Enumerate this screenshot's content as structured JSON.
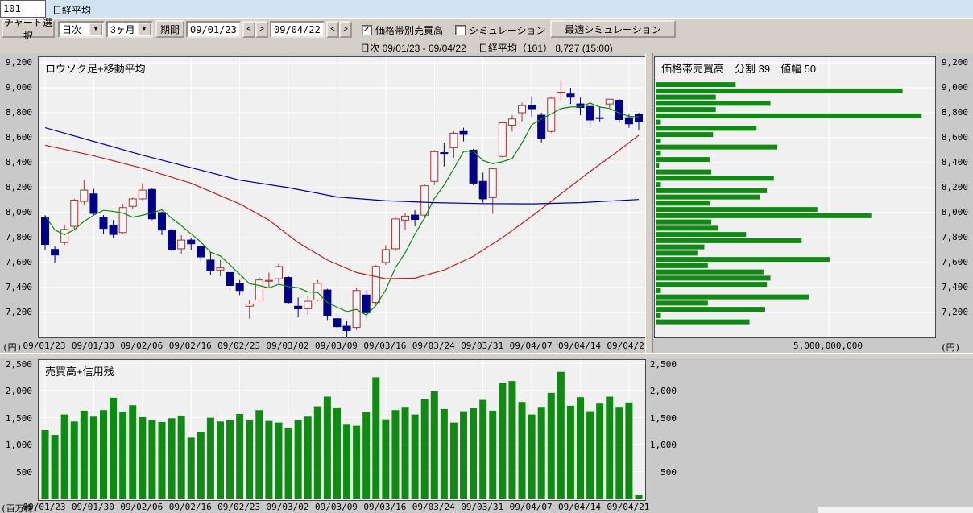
{
  "window": {
    "code_value": "101",
    "title": "日経平均"
  },
  "toolbar": {
    "chart_select": "チャート選択",
    "freq": "日次",
    "range": "3ヶ月",
    "period": "期間",
    "date_from": "09/01/23",
    "date_to": "09/04/22",
    "prev": "<",
    "next": ">",
    "dropdown_arrow": "▼",
    "vbp_check": {
      "label": "価格帯別売買高",
      "checked": true,
      "glyph": "✓"
    },
    "sim_check": {
      "label": "シミュレーション",
      "checked": false,
      "glyph": ""
    },
    "optimal": "最適シミュレーション"
  },
  "status": {
    "text": "日次 09/01/23 - 09/04/22　 日経平均（101） 8,727 (15:00)"
  },
  "colors": {
    "titlebar_bg": "#d2e4f4",
    "toolbar_bg": "#d4d0c8",
    "plot_bg": "#f0f0f0",
    "grid": "#ffffff",
    "candle_up_fill": "#f6f6f6",
    "candle_up_stroke": "#aa3333",
    "candle_down": "#000085",
    "ma_short": "#0d8a0d",
    "ma_mid": "#bb2222",
    "ma_long": "#000099",
    "bar_green": "#108a14"
  },
  "chart_data": [
    {
      "type": "candlestick",
      "title": "ロウソク足+移動平均",
      "unit_label": "(円)",
      "ylim": [
        7000,
        9245
      ],
      "y_ticks": [
        7200,
        7400,
        7600,
        7800,
        8000,
        8200,
        8400,
        8600,
        8800,
        9000,
        9200
      ],
      "x_tick_labels": [
        "09/01/23",
        "09/01/30",
        "09/02/06",
        "09/02/16",
        "09/02/23",
        "09/03/02",
        "09/03/09",
        "09/03/16",
        "09/03/24",
        "09/03/31",
        "09/04/07",
        "09/04/14",
        "09/04/21"
      ],
      "x_tick_indices": [
        0,
        5,
        10,
        15,
        20,
        25,
        30,
        35,
        40,
        45,
        50,
        55,
        60
      ],
      "candles": [
        [
          7960,
          7980,
          7700,
          7745
        ],
        [
          7705,
          7730,
          7600,
          7660
        ],
        [
          7760,
          7900,
          7740,
          7865
        ],
        [
          7890,
          8110,
          7870,
          8100
        ],
        [
          8090,
          8260,
          8060,
          8180
        ],
        [
          8150,
          8190,
          7980,
          7994
        ],
        [
          7960,
          7980,
          7830,
          7873
        ],
        [
          7900,
          7940,
          7800,
          7825
        ],
        [
          7840,
          8070,
          7830,
          8040
        ],
        [
          8050,
          8120,
          8030,
          8110
        ],
        [
          8110,
          8235,
          8100,
          8180
        ],
        [
          8185,
          8200,
          7940,
          7950
        ],
        [
          8000,
          8010,
          7820,
          7860
        ],
        [
          7860,
          7870,
          7690,
          7705
        ],
        [
          7710,
          7820,
          7670,
          7780
        ],
        [
          7780,
          7800,
          7700,
          7750
        ],
        [
          7730,
          7740,
          7610,
          7645
        ],
        [
          7620,
          7680,
          7500,
          7535
        ],
        [
          7540,
          7620,
          7490,
          7557
        ],
        [
          7520,
          7530,
          7380,
          7416
        ],
        [
          7430,
          7460,
          7340,
          7376
        ],
        [
          7250,
          7300,
          7150,
          7268
        ],
        [
          7300,
          7480,
          7290,
          7460
        ],
        [
          7450,
          7520,
          7400,
          7457
        ],
        [
          7470,
          7590,
          7440,
          7568
        ],
        [
          7480,
          7490,
          7270,
          7280
        ],
        [
          7250,
          7320,
          7160,
          7229
        ],
        [
          7230,
          7330,
          7180,
          7290
        ],
        [
          7300,
          7460,
          7290,
          7433
        ],
        [
          7380,
          7390,
          7140,
          7173
        ],
        [
          7150,
          7190,
          7060,
          7086
        ],
        [
          7090,
          7130,
          6995,
          7055
        ],
        [
          7080,
          7400,
          7060,
          7376
        ],
        [
          7340,
          7380,
          7150,
          7198
        ],
        [
          7280,
          7580,
          7260,
          7569
        ],
        [
          7600,
          7740,
          7580,
          7704
        ],
        [
          7710,
          7970,
          7690,
          7949
        ],
        [
          7940,
          8000,
          7860,
          7972
        ],
        [
          7980,
          8020,
          7890,
          7945
        ],
        [
          7980,
          8230,
          7950,
          8215
        ],
        [
          8250,
          8500,
          8220,
          8488
        ],
        [
          8480,
          8560,
          8370,
          8479
        ],
        [
          8520,
          8650,
          8440,
          8636
        ],
        [
          8650,
          8680,
          8570,
          8626
        ],
        [
          8500,
          8510,
          8220,
          8236
        ],
        [
          8250,
          8320,
          8080,
          8110
        ],
        [
          8120,
          8360,
          7990,
          8351
        ],
        [
          8450,
          8730,
          8440,
          8719
        ],
        [
          8700,
          8780,
          8650,
          8750
        ],
        [
          8800,
          8880,
          8730,
          8857
        ],
        [
          8860,
          8930,
          8770,
          8832
        ],
        [
          8780,
          8800,
          8560,
          8595
        ],
        [
          8650,
          8930,
          8640,
          8916
        ],
        [
          8960,
          9060,
          8890,
          8964
        ],
        [
          8950,
          9000,
          8870,
          8924
        ],
        [
          8870,
          8920,
          8780,
          8842
        ],
        [
          8850,
          8860,
          8700,
          8742
        ],
        [
          8760,
          8850,
          8730,
          8755
        ],
        [
          8870,
          8910,
          8840,
          8908
        ],
        [
          8900,
          8910,
          8720,
          8745
        ],
        [
          8760,
          8790,
          8680,
          8711
        ],
        [
          8790,
          8800,
          8660,
          8727
        ]
      ],
      "series": [
        {
          "name": "moving-average-short",
          "color": "#0d8a0d",
          "values": [
            7976,
            7861,
            7822,
            7863,
            7930,
            7980,
            8018,
            8010,
            7996,
            7963,
            7979,
            7998,
            8022,
            7956,
            7895,
            7830,
            7765,
            7683,
            7653,
            7580,
            7506,
            7430,
            7416,
            7396,
            7426,
            7407,
            7399,
            7365,
            7360,
            7281,
            7242,
            7207,
            7225,
            7178,
            7257,
            7380,
            7559,
            7678,
            7828,
            7957,
            8114,
            8220,
            8353,
            8489,
            8493,
            8417,
            8392,
            8408,
            8433,
            8557,
            8702,
            8751,
            8790,
            8833,
            8846,
            8848,
            8878,
            8845,
            8834,
            8797,
            8771,
            8768
          ]
        },
        {
          "name": "moving-average-mid",
          "color": "#bb2222",
          "anchors": [
            [
              0,
              8540
            ],
            [
              5,
              8455
            ],
            [
              10,
              8355
            ],
            [
              15,
              8235
            ],
            [
              20,
              8070
            ],
            [
              23,
              7940
            ],
            [
              26,
              7760
            ],
            [
              29,
              7620
            ],
            [
              32,
              7520
            ],
            [
              35,
              7470
            ],
            [
              38,
              7475
            ],
            [
              41,
              7540
            ],
            [
              44,
              7650
            ],
            [
              47,
              7800
            ],
            [
              50,
              7970
            ],
            [
              53,
              8150
            ],
            [
              56,
              8330
            ],
            [
              59,
              8500
            ],
            [
              61,
              8620
            ]
          ]
        },
        {
          "name": "moving-average-long",
          "color": "#000099",
          "anchors": [
            [
              0,
              8680
            ],
            [
              5,
              8570
            ],
            [
              10,
              8460
            ],
            [
              15,
              8360
            ],
            [
              20,
              8260
            ],
            [
              25,
              8200
            ],
            [
              30,
              8125
            ],
            [
              35,
              8095
            ],
            [
              40,
              8080
            ],
            [
              45,
              8072
            ],
            [
              50,
              8070
            ],
            [
              55,
              8080
            ],
            [
              61,
              8105
            ]
          ]
        }
      ]
    },
    {
      "type": "bar-horizontal",
      "title": "価格帯売買高　分割 39　値幅 50",
      "split": 39,
      "bin_width": 50,
      "top_bin_price": 9025,
      "ylim": [
        7000,
        9245
      ],
      "y_ticks": [
        7200,
        7400,
        7600,
        7800,
        8000,
        8200,
        8400,
        8600,
        8800,
        9000,
        9200
      ],
      "xlim": [
        0,
        8060000000
      ],
      "x_gridline_value": 5000000000,
      "x_axis_label": "5,000,000,000",
      "unit_label": "(円)",
      "values": [
        2300000000,
        7100000000,
        1730000000,
        3300000000,
        1730000000,
        7650000000,
        150000000,
        2900000000,
        1650000000,
        150000000,
        3500000000,
        150000000,
        1550000000,
        100000000,
        1600000000,
        3400000000,
        150000000,
        3200000000,
        3000000000,
        1550000000,
        4650000000,
        6200000000,
        1600000000,
        1800000000,
        2600000000,
        4200000000,
        1400000000,
        1200000000,
        5000000000,
        1500000000,
        3100000000,
        3300000000,
        3200000000,
        150000000,
        4400000000,
        1500000000,
        3150000000,
        150000000,
        2700000000
      ]
    },
    {
      "type": "bar",
      "title": "売買高+信用残",
      "unit_label": "(百万株)",
      "ylim": [
        0,
        2570
      ],
      "y_ticks": [
        500,
        1000,
        1500,
        2000,
        2500
      ],
      "x_tick_labels": [
        "09/01/23",
        "09/01/30",
        "09/02/06",
        "09/02/16",
        "09/02/23",
        "09/03/02",
        "09/03/09",
        "09/03/16",
        "09/03/24",
        "09/03/31",
        "09/04/07",
        "09/04/14",
        "09/04/21"
      ],
      "x_tick_indices": [
        0,
        5,
        10,
        15,
        20,
        25,
        30,
        35,
        40,
        45,
        50,
        55,
        60
      ],
      "values": [
        1270,
        1180,
        1560,
        1430,
        1630,
        1520,
        1640,
        1870,
        1610,
        1730,
        1510,
        1450,
        1420,
        1490,
        1540,
        1130,
        1240,
        1500,
        1430,
        1460,
        1570,
        1450,
        1640,
        1440,
        1410,
        1300,
        1450,
        1520,
        1710,
        1890,
        1690,
        1370,
        1350,
        1600,
        2250,
        1470,
        1640,
        1700,
        1560,
        1840,
        1990,
        1660,
        1410,
        1620,
        1680,
        1830,
        1630,
        2140,
        2180,
        1790,
        1560,
        1700,
        1960,
        2350,
        1720,
        1880,
        1620,
        1760,
        1890,
        1700,
        1780,
        60
      ]
    }
  ]
}
